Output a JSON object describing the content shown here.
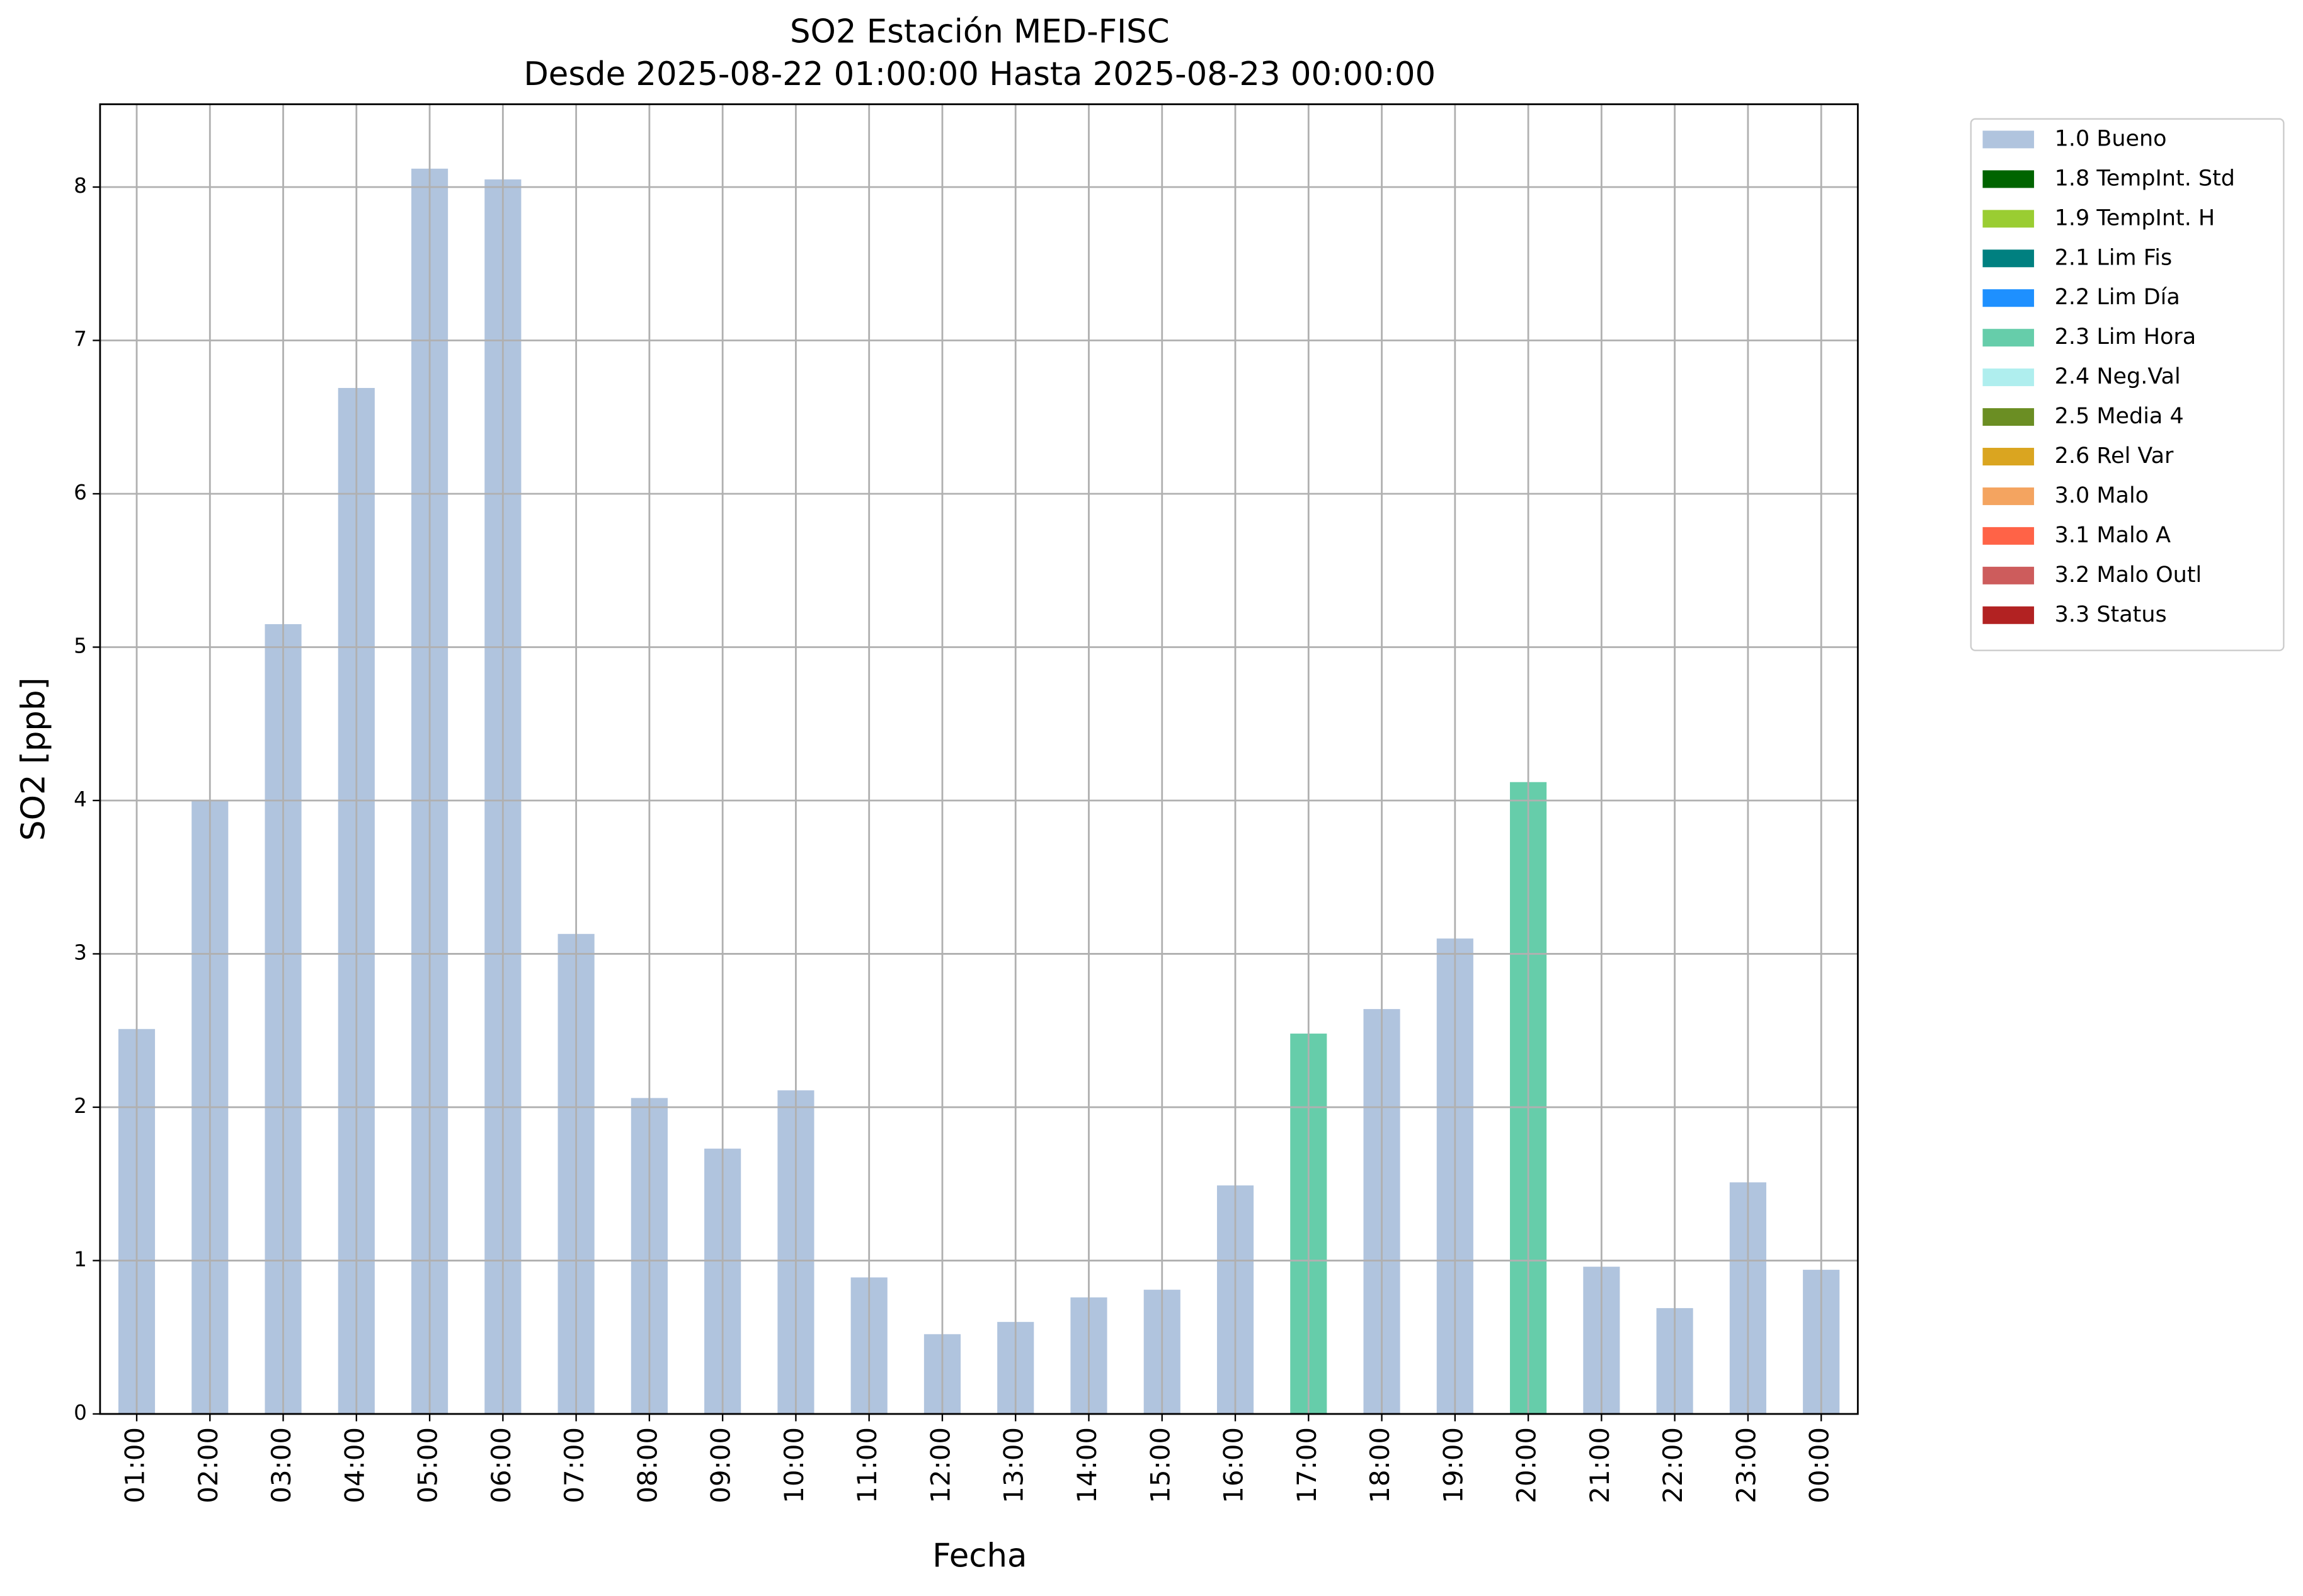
{
  "chart_data": {
    "type": "stacked_bar",
    "title": "SO2 Estación MED-FISC",
    "subtitle": "Desde 2025-08-22 01:00:00 Hasta 2025-08-23 00:00:00",
    "x_label": "Fecha",
    "y_label": "SO2 [ppb]",
    "categories": [
      "01:00",
      "02:00",
      "03:00",
      "04:00",
      "05:00",
      "06:00",
      "07:00",
      "08:00",
      "09:00",
      "10:00",
      "11:00",
      "12:00",
      "13:00",
      "14:00",
      "15:00",
      "16:00",
      "17:00",
      "18:00",
      "19:00",
      "20:00",
      "21:00",
      "22:00",
      "23:00",
      "00:00"
    ],
    "series": [
      {
        "name": "1.0 Bueno",
        "color": "#b0c4de",
        "values": [
          2.51,
          4.0,
          5.15,
          6.69,
          8.12,
          8.05,
          3.13,
          2.06,
          1.73,
          2.11,
          0.89,
          0.52,
          0.6,
          0.76,
          0.81,
          1.49,
          null,
          2.64,
          3.1,
          null,
          0.96,
          0.69,
          1.51,
          0.94
        ]
      },
      {
        "name": "1.8 TempInt. Std",
        "color": "#006400",
        "values": [
          null,
          null,
          null,
          null,
          null,
          null,
          null,
          null,
          null,
          null,
          null,
          null,
          null,
          null,
          null,
          null,
          null,
          null,
          null,
          null,
          null,
          null,
          null,
          null
        ]
      },
      {
        "name": "1.9 TempInt. H",
        "color": "#9acd32",
        "values": [
          null,
          null,
          null,
          null,
          null,
          null,
          null,
          null,
          null,
          null,
          null,
          null,
          null,
          null,
          null,
          null,
          null,
          null,
          null,
          null,
          null,
          null,
          null,
          null
        ]
      },
      {
        "name": "2.1 Lim Fis",
        "color": "#008080",
        "values": [
          null,
          null,
          null,
          null,
          null,
          null,
          null,
          null,
          null,
          null,
          null,
          null,
          null,
          null,
          null,
          null,
          null,
          null,
          null,
          null,
          null,
          null,
          null,
          null
        ]
      },
      {
        "name": "2.2 Lim Día",
        "color": "#1e90ff",
        "values": [
          null,
          null,
          null,
          null,
          null,
          null,
          null,
          null,
          null,
          null,
          null,
          null,
          null,
          null,
          null,
          null,
          null,
          null,
          null,
          null,
          null,
          null,
          null,
          null
        ]
      },
      {
        "name": "2.3 Lim Hora",
        "color": "#66cdaa",
        "values": [
          null,
          null,
          null,
          null,
          null,
          null,
          null,
          null,
          null,
          null,
          null,
          null,
          null,
          null,
          null,
          null,
          2.48,
          null,
          null,
          4.12,
          null,
          null,
          null,
          null
        ]
      },
      {
        "name": "2.4 Neg.Val",
        "color": "#afeeee",
        "values": [
          null,
          null,
          null,
          null,
          null,
          null,
          null,
          null,
          null,
          null,
          null,
          null,
          null,
          null,
          null,
          null,
          null,
          null,
          null,
          null,
          null,
          null,
          null,
          null
        ]
      },
      {
        "name": "2.5 Media 4",
        "color": "#6b8e23",
        "values": [
          null,
          null,
          null,
          null,
          null,
          null,
          null,
          null,
          null,
          null,
          null,
          null,
          null,
          null,
          null,
          null,
          null,
          null,
          null,
          null,
          null,
          null,
          null,
          null
        ]
      },
      {
        "name": "2.6 Rel Var",
        "color": "#daa520",
        "values": [
          null,
          null,
          null,
          null,
          null,
          null,
          null,
          null,
          null,
          null,
          null,
          null,
          null,
          null,
          null,
          null,
          null,
          null,
          null,
          null,
          null,
          null,
          null,
          null
        ]
      },
      {
        "name": "3.0 Malo",
        "color": "#f4a460",
        "values": [
          null,
          null,
          null,
          null,
          null,
          null,
          null,
          null,
          null,
          null,
          null,
          null,
          null,
          null,
          null,
          null,
          null,
          null,
          null,
          null,
          null,
          null,
          null,
          null
        ]
      },
      {
        "name": "3.1 Malo A",
        "color": "#ff6347",
        "values": [
          null,
          null,
          null,
          null,
          null,
          null,
          null,
          null,
          null,
          null,
          null,
          null,
          null,
          null,
          null,
          null,
          null,
          null,
          null,
          null,
          null,
          null,
          null,
          null
        ]
      },
      {
        "name": "3.2 Malo Outl",
        "color": "#cd5c5c",
        "values": [
          null,
          null,
          null,
          null,
          null,
          null,
          null,
          null,
          null,
          null,
          null,
          null,
          null,
          null,
          null,
          null,
          null,
          null,
          null,
          null,
          null,
          null,
          null,
          null
        ]
      },
      {
        "name": "3.3 Status",
        "color": "#b22222",
        "values": [
          null,
          null,
          null,
          null,
          null,
          null,
          null,
          null,
          null,
          null,
          null,
          null,
          null,
          null,
          null,
          null,
          null,
          null,
          null,
          null,
          null,
          null,
          null,
          null
        ]
      }
    ],
    "ylim": [
      0,
      8.54
    ],
    "yticks": [
      0,
      1,
      2,
      3,
      4,
      5,
      6,
      7,
      8
    ],
    "grid": true
  }
}
